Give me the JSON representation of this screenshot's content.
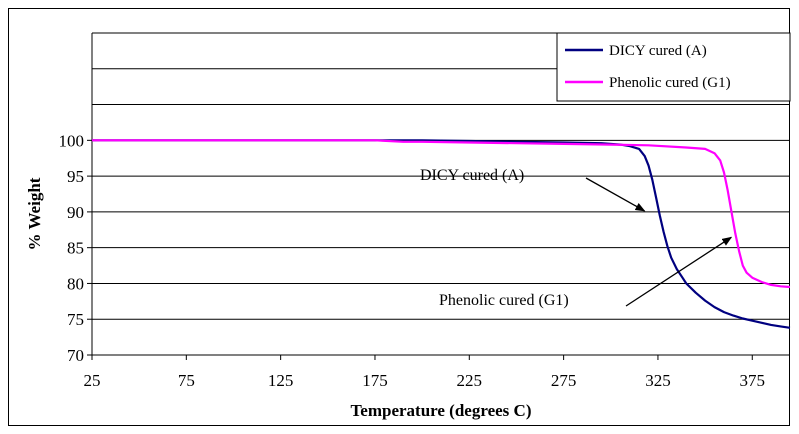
{
  "chart_data": {
    "type": "line",
    "title": "",
    "xlabel": "Temperature (degrees C)",
    "ylabel": "% Weight",
    "xlim": [
      25,
      395
    ],
    "ylim": [
      70,
      115
    ],
    "xticks": [
      25,
      75,
      125,
      175,
      225,
      275,
      325,
      375
    ],
    "yticks": [
      70,
      75,
      80,
      85,
      90,
      95,
      100
    ],
    "gridlines_y": [
      70,
      75,
      80,
      85,
      90,
      95,
      100,
      105,
      110,
      115
    ],
    "grid": "horizontal",
    "legend_position": "top-right",
    "series": [
      {
        "name": "DICY cured (A)",
        "color": "#000080",
        "x": [
          25,
          100,
          175,
          200,
          225,
          250,
          275,
          295,
          305,
          310,
          315,
          318,
          320,
          322,
          324,
          326,
          328,
          330,
          332,
          335,
          338,
          340,
          345,
          350,
          355,
          360,
          365,
          370,
          375,
          380,
          385,
          390,
          395
        ],
        "y": [
          100,
          100,
          100,
          100,
          99.9,
          99.8,
          99.7,
          99.6,
          99.4,
          99.2,
          98.8,
          97.8,
          96.5,
          94.5,
          92.0,
          89.5,
          87.2,
          85.2,
          83.6,
          82.0,
          80.8,
          80.0,
          78.7,
          77.6,
          76.7,
          76.0,
          75.5,
          75.1,
          74.8,
          74.5,
          74.2,
          74.0,
          73.8
        ]
      },
      {
        "name": "Phenolic cured (G1)",
        "color": "#FF00FF",
        "x": [
          25,
          100,
          175,
          190,
          200,
          225,
          250,
          275,
          300,
          320,
          340,
          350,
          355,
          358,
          360,
          362,
          364,
          366,
          368,
          370,
          372,
          375,
          380,
          385,
          390,
          395
        ],
        "y": [
          100,
          100,
          100,
          99.8,
          99.8,
          99.7,
          99.6,
          99.5,
          99.4,
          99.3,
          99.0,
          98.8,
          98.2,
          97.2,
          95.5,
          93.0,
          90.0,
          87.0,
          84.5,
          82.5,
          81.5,
          80.8,
          80.2,
          79.8,
          79.6,
          79.5
        ]
      }
    ],
    "annotations": [
      {
        "text": "DICY cured (A)",
        "target_series": 0,
        "target_x": 320,
        "target_y": 90
      },
      {
        "text": "Phenolic cured (G1)",
        "target_series": 1,
        "target_x": 366,
        "target_y": 87
      }
    ]
  }
}
